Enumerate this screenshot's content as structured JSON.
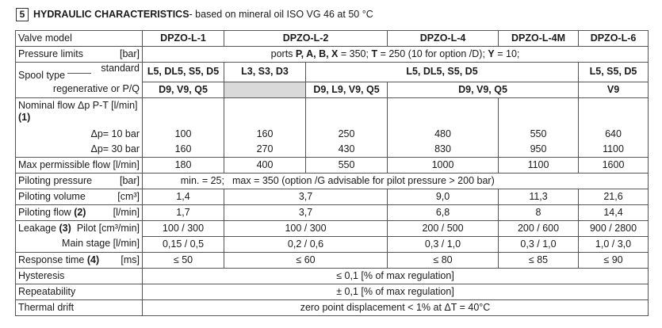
{
  "section": {
    "number": "5",
    "title": "HYDRAULIC CHARACTERISTICS",
    "subtitle": " - based on mineral oil ISO VG 46 at 50 °C"
  },
  "header": {
    "label": "Valve model",
    "models": [
      "DPZO-L-1",
      "DPZO-L-2",
      "DPZO-L-4",
      "DPZO-L-4M",
      "DPZO-L-6"
    ]
  },
  "pressure_limits": {
    "label": "Pressure limits",
    "unit": "[bar]",
    "value_a": "ports ",
    "value_b": "P, A, B, X",
    "value_c": " = 350;   ",
    "value_d": "T",
    "value_e": " = 250 (10 for option /D);   ",
    "value_f": "Y",
    "value_g": " = 10;"
  },
  "spool_type": {
    "label": "Spool type",
    "standard_label": "standard",
    "standard": [
      "L5, DL5, S5, D5",
      "L3, S3, D3",
      "L5, DL5, S5, D5",
      "L5, S5, D5"
    ],
    "regen_label": "regenerative or P/Q",
    "regen": [
      "D9, V9, Q5",
      "D9, L9, V9, Q5",
      "D9, V9, Q5",
      "V9"
    ]
  },
  "nominal_flow": {
    "label": "Nominal flow Δp P-T  [l/min]",
    "note": "(1)",
    "dp10_label": "Δp= 10 bar",
    "dp10": [
      "100",
      "160",
      "250",
      "480",
      "550",
      "640"
    ],
    "dp30_label": "Δp= 30 bar",
    "dp30": [
      "160",
      "270",
      "430",
      "830",
      "950",
      "1100"
    ]
  },
  "max_flow": {
    "label": "Max permissible flow [l/min]",
    "values": [
      "180",
      "400",
      "550",
      "1000",
      "1100",
      "1600"
    ]
  },
  "piloting_pressure": {
    "label": "Piloting pressure",
    "unit": "[bar]",
    "min": "min. = 25;",
    "max": "max = 350 (option /G advisable for pilot pressure > 200 bar)"
  },
  "piloting_volume": {
    "label": "Piloting volume",
    "unit": "[cm³]",
    "values": [
      "1,4",
      "3,7",
      "9,0",
      "11,3",
      "21,6"
    ]
  },
  "piloting_flow": {
    "label": "Piloting flow",
    "note": "(2)",
    "unit": "[l/min]",
    "values": [
      "1,7",
      "3,7",
      "6,8",
      "8",
      "14,4"
    ]
  },
  "leakage": {
    "label": "Leakage",
    "note": "(3)",
    "pilot_label": "Pilot [cm³/min]",
    "pilot": [
      "100 / 300",
      "100 / 300",
      "200 / 500",
      "200 / 600",
      "900 / 2800"
    ],
    "main_label": "Main stage [l/min]",
    "main": [
      "0,15 / 0,5",
      "0,2 / 0,6",
      "0,3 / 1,0",
      "0,3 / 1,0",
      "1,0 / 3,0"
    ]
  },
  "response_time": {
    "label": "Response time",
    "note": "(4)",
    "unit": "[ms]",
    "values": [
      "≤ 50",
      "≤ 60",
      "≤ 80",
      "≤ 85",
      "≤ 90"
    ]
  },
  "hysteresis": {
    "label": "Hysteresis",
    "value": "≤ 0,1 [% of max regulation]"
  },
  "repeatability": {
    "label": "Repeatability",
    "value": "± 0,1 [% of max regulation]"
  },
  "thermal_drift": {
    "label": "Thermal drift",
    "value": "zero point displacement < 1% at ΔT = 40°C"
  }
}
